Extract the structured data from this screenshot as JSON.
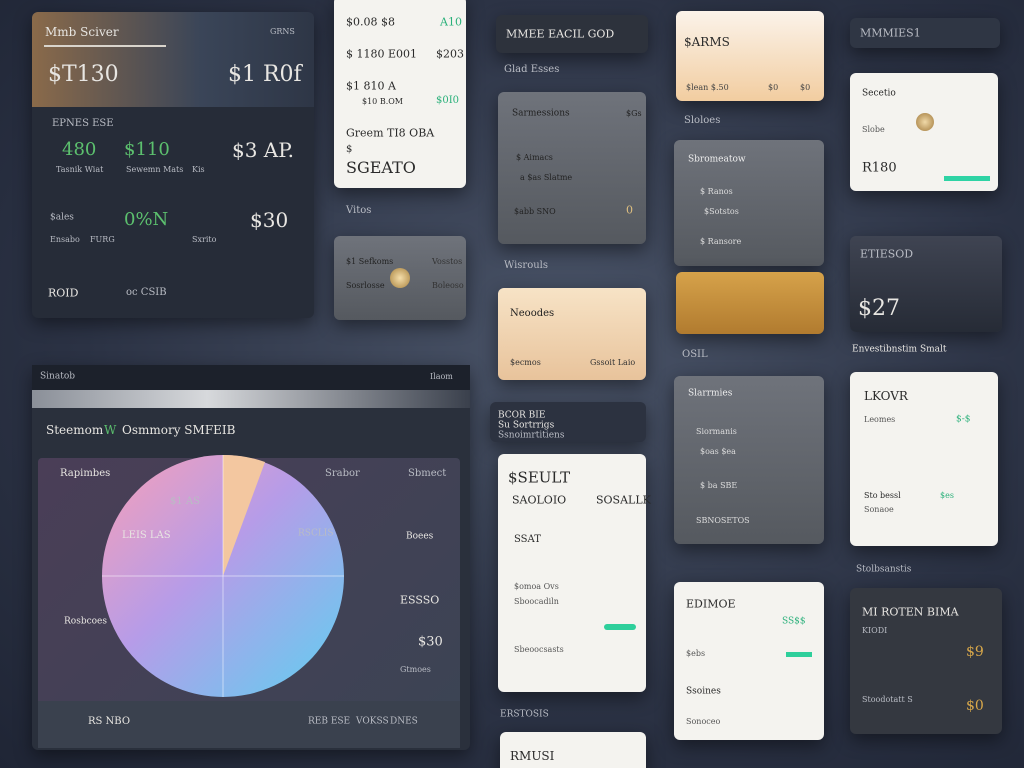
{
  "panels": [
    {
      "texts": [
        "Mmb Sciver",
        "GRNS",
        "$T130",
        "$1 R0f",
        "EPNES ESE",
        "480",
        "$110",
        "$3 AP.",
        "Tasnik Wiat",
        "Sewemn Mats",
        "Kis",
        "$ales",
        "0%N",
        "$30",
        "Ensabo",
        "FURG",
        "Sxrito",
        "ROID",
        "oc CSIB"
      ]
    },
    {
      "texts": [
        "$0.08 $8",
        "A10",
        "$ 1180 E001",
        "$203",
        "$1 810 A",
        "$10 B.OM",
        "$0I0",
        "Greem TI8 OBA",
        "$",
        "SGEATO"
      ]
    },
    {
      "texts": [
        "Vitos",
        "$1 Sefkoms",
        "Vosstos",
        "Sosrlosse",
        "Boleoso"
      ]
    },
    {
      "texts": [
        "Sinatob",
        "Ilaom",
        "Steemom",
        "W",
        "Osmmory SMFEIB",
        "Rapimbes",
        "Srabor",
        "Sbmect",
        "$1 AS",
        "LEIS LAS",
        "RSCLIS",
        "Boees",
        "Rosbcoes",
        "ESSSO",
        "$30",
        "Gtmoes",
        "RS NBO",
        "REB ESE",
        "VOKSS",
        "DNES"
      ]
    },
    {
      "texts": [
        "MMEE EACIL GOD",
        "Glad Esses",
        "Sarmessions",
        "$Gs",
        "$ Aimacs",
        "a $as Slatme",
        "$abb SNO",
        "0",
        "Wisrouls",
        "Neoodes",
        "$ecmos",
        "Gssoit Laio",
        "BCOR BIE",
        "Su Sortrrigs",
        "Ssnoimrtitiens",
        "$SEULT",
        "SAOLOIO",
        "SOSALLK",
        "SSAT",
        "$omoa Ovs",
        "Sboocadiln",
        "Sbeoocsasts",
        "ERSTOSIS",
        "RMUSI"
      ]
    },
    {
      "texts": [
        "$ARMS",
        "$lean $.50",
        "$0",
        "$0",
        "Sloloes",
        "Sbromeatow",
        "$ Ranos",
        "$Sotstos",
        "$ Ransore",
        "OSIL",
        "Slarrmies",
        "Siormanis",
        "$oas $ea",
        "$ ba SBE",
        "SBNOSETOS",
        "EDIMOE",
        "SS$$",
        "$ebs",
        "Ssoines",
        "Sonoceo"
      ]
    },
    {
      "texts": [
        "MMMIES1",
        "Secetio",
        "Slobe",
        "R180",
        "ETIESOD",
        "$27",
        "Envestibnstim Smalt",
        "LKOVR",
        "Leomes",
        "$-$",
        "Sto bessl",
        "$es",
        "Sonaoe",
        "Stolbsanstis",
        "MI ROTEN BIMA",
        "KIODI",
        "$9",
        "$0",
        "Stoodotatt S"
      ]
    }
  ]
}
